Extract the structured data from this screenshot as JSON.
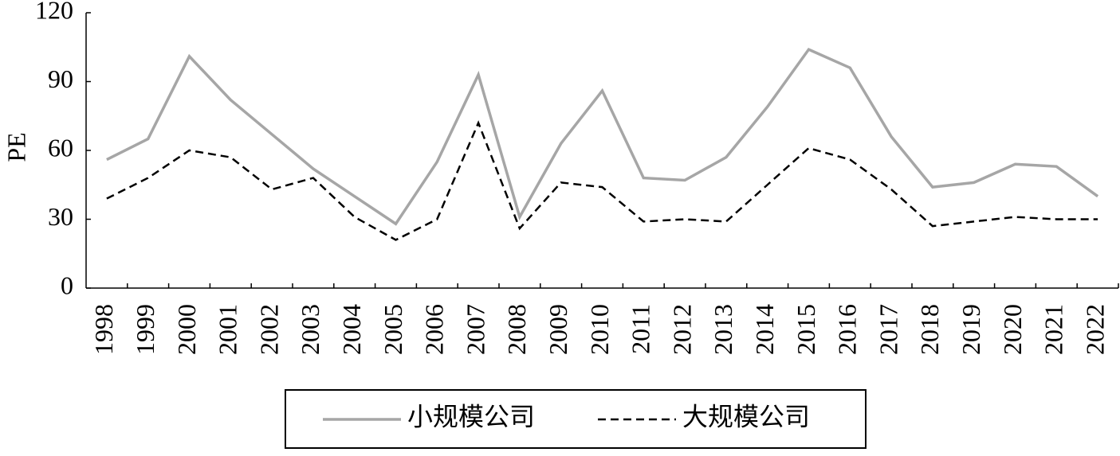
{
  "chart_data": {
    "type": "line",
    "y_label": "PE",
    "categories": [
      "1998",
      "1999",
      "2000",
      "2001",
      "2002",
      "2003",
      "2004",
      "2005",
      "2006",
      "2007",
      "2008",
      "2009",
      "2010",
      "2011",
      "2012",
      "2013",
      "2014",
      "2015",
      "2016",
      "2017",
      "2018",
      "2019",
      "2020",
      "2021",
      "2022"
    ],
    "series": [
      {
        "name": "小规模公司",
        "color": "#a6a6a6",
        "dash": "solid",
        "values": [
          56,
          65,
          101,
          82,
          67,
          52,
          40,
          28,
          55,
          93,
          31,
          63,
          86,
          48,
          47,
          57,
          79,
          104,
          96,
          66,
          44,
          46,
          54,
          53,
          40
        ]
      },
      {
        "name": "大规模公司",
        "color": "#000000",
        "dash": "dashed",
        "values": [
          39,
          48,
          60,
          57,
          43,
          48,
          31,
          21,
          30,
          72,
          26,
          46,
          44,
          29,
          30,
          29,
          45,
          61,
          56,
          43,
          27,
          29,
          31,
          30,
          30
        ]
      }
    ],
    "ylim": [
      0,
      120
    ],
    "yticks": [
      0,
      30,
      60,
      90,
      120
    ],
    "legend": "bottom"
  }
}
